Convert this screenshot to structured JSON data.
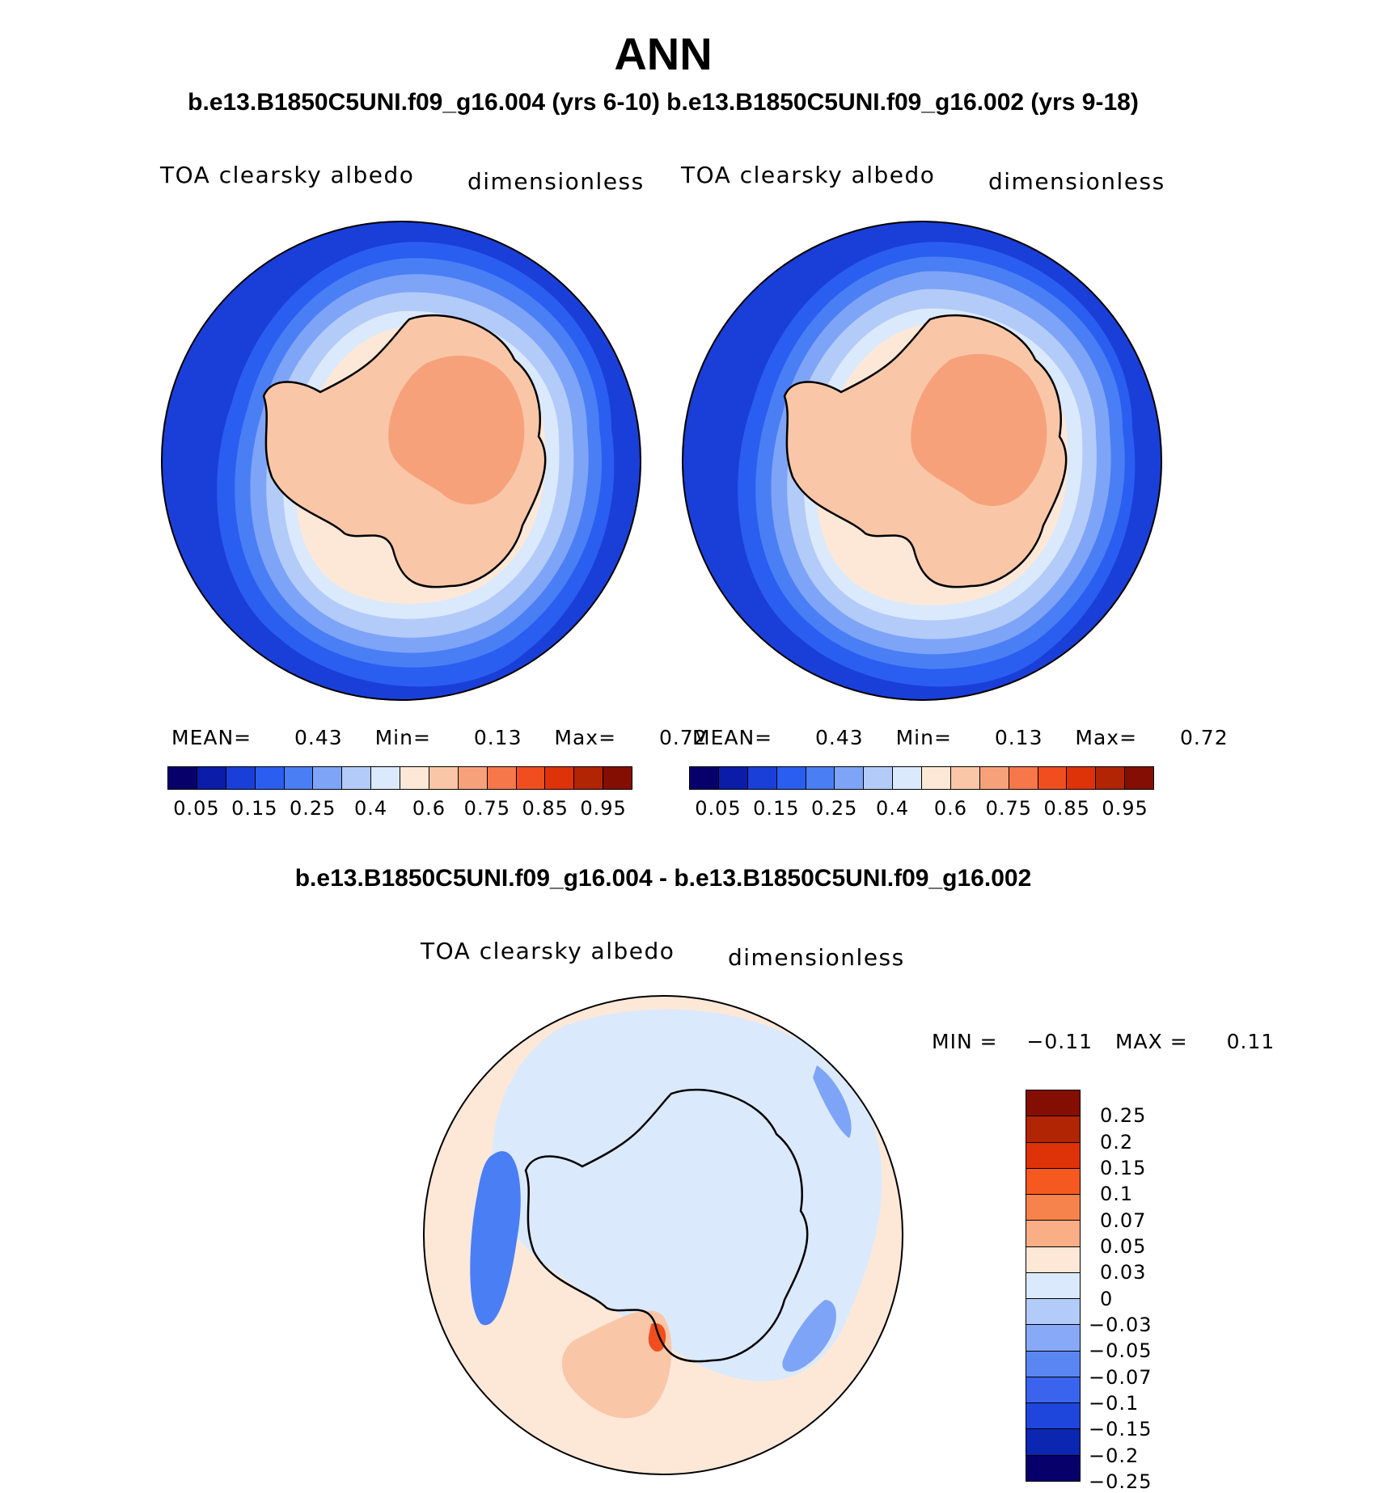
{
  "title": "ANN",
  "subtitle": "b.e13.B1850C5UNI.f09_g16.004 (yrs 6-10) b.e13.B1850C5UNI.f09_g16.002 (yrs 9-18)",
  "diff_title": "b.e13.B1850C5UNI.f09_g16.004 - b.e13.B1850C5UNI.f09_g16.002",
  "panels": [
    {
      "variable": "TOA clearsky albedo",
      "units": "dimensionless",
      "stats": {
        "mean_label": "MEAN=",
        "mean": "0.43",
        "min_label": "Min=",
        "min": "0.13",
        "max_label": "Max=",
        "max": "0.72"
      }
    },
    {
      "variable": "TOA clearsky albedo",
      "units": "dimensionless",
      "stats": {
        "mean_label": "MEAN=",
        "mean": "0.43",
        "min_label": "Min=",
        "min": "0.13",
        "max_label": "Max=",
        "max": "0.72"
      }
    }
  ],
  "diff_panel": {
    "variable": "TOA clearsky albedo",
    "units": "dimensionless",
    "stats": {
      "min_label": "MIN =",
      "min": "−0.11",
      "max_label": "MAX =",
      "max": "0.11"
    }
  },
  "colorbar_main": {
    "colors": [
      "#08006a",
      "#0b1ca8",
      "#1a3fd8",
      "#2a5ef0",
      "#4a7ef5",
      "#7ea4f7",
      "#b3cbf8",
      "#dbe9fc",
      "#fde8d8",
      "#f9c7a8",
      "#f7a17a",
      "#f5774a",
      "#f04e1e",
      "#de3208",
      "#b12404",
      "#830e01"
    ],
    "labels": [
      "0.05",
      "0.15",
      "0.25",
      "0.4",
      "0.6",
      "0.75",
      "0.85",
      "0.95"
    ]
  },
  "colorbar_diff": {
    "colors": [
      "#830e01",
      "#b12404",
      "#de3208",
      "#f5591f",
      "#f7834c",
      "#f9ae86",
      "#fde8d8",
      "#dbe9fc",
      "#b3cbf8",
      "#87a9f7",
      "#5a86f2",
      "#3a64ee",
      "#1f46dc",
      "#0b26b0",
      "#08006a"
    ],
    "labels": [
      "0.25",
      "0.2",
      "0.15",
      "0.1",
      "0.07",
      "0.05",
      "0.03",
      "0",
      "−0.03",
      "−0.05",
      "−0.07",
      "−0.1",
      "−0.15",
      "−0.2",
      "−0.25"
    ]
  },
  "map_colors": {
    "deep_blue": "#1a3fd8",
    "blue": "#2a5ef0",
    "mid_blue": "#4a7ef5",
    "light_blue": "#7ea4f7",
    "pale_blue": "#b3cbf8",
    "very_pale_blue": "#dbe9fc",
    "cream": "#fde8d8",
    "peach": "#f9c7a8",
    "salmon": "#f7a17a",
    "red": "#f04e1e"
  }
}
